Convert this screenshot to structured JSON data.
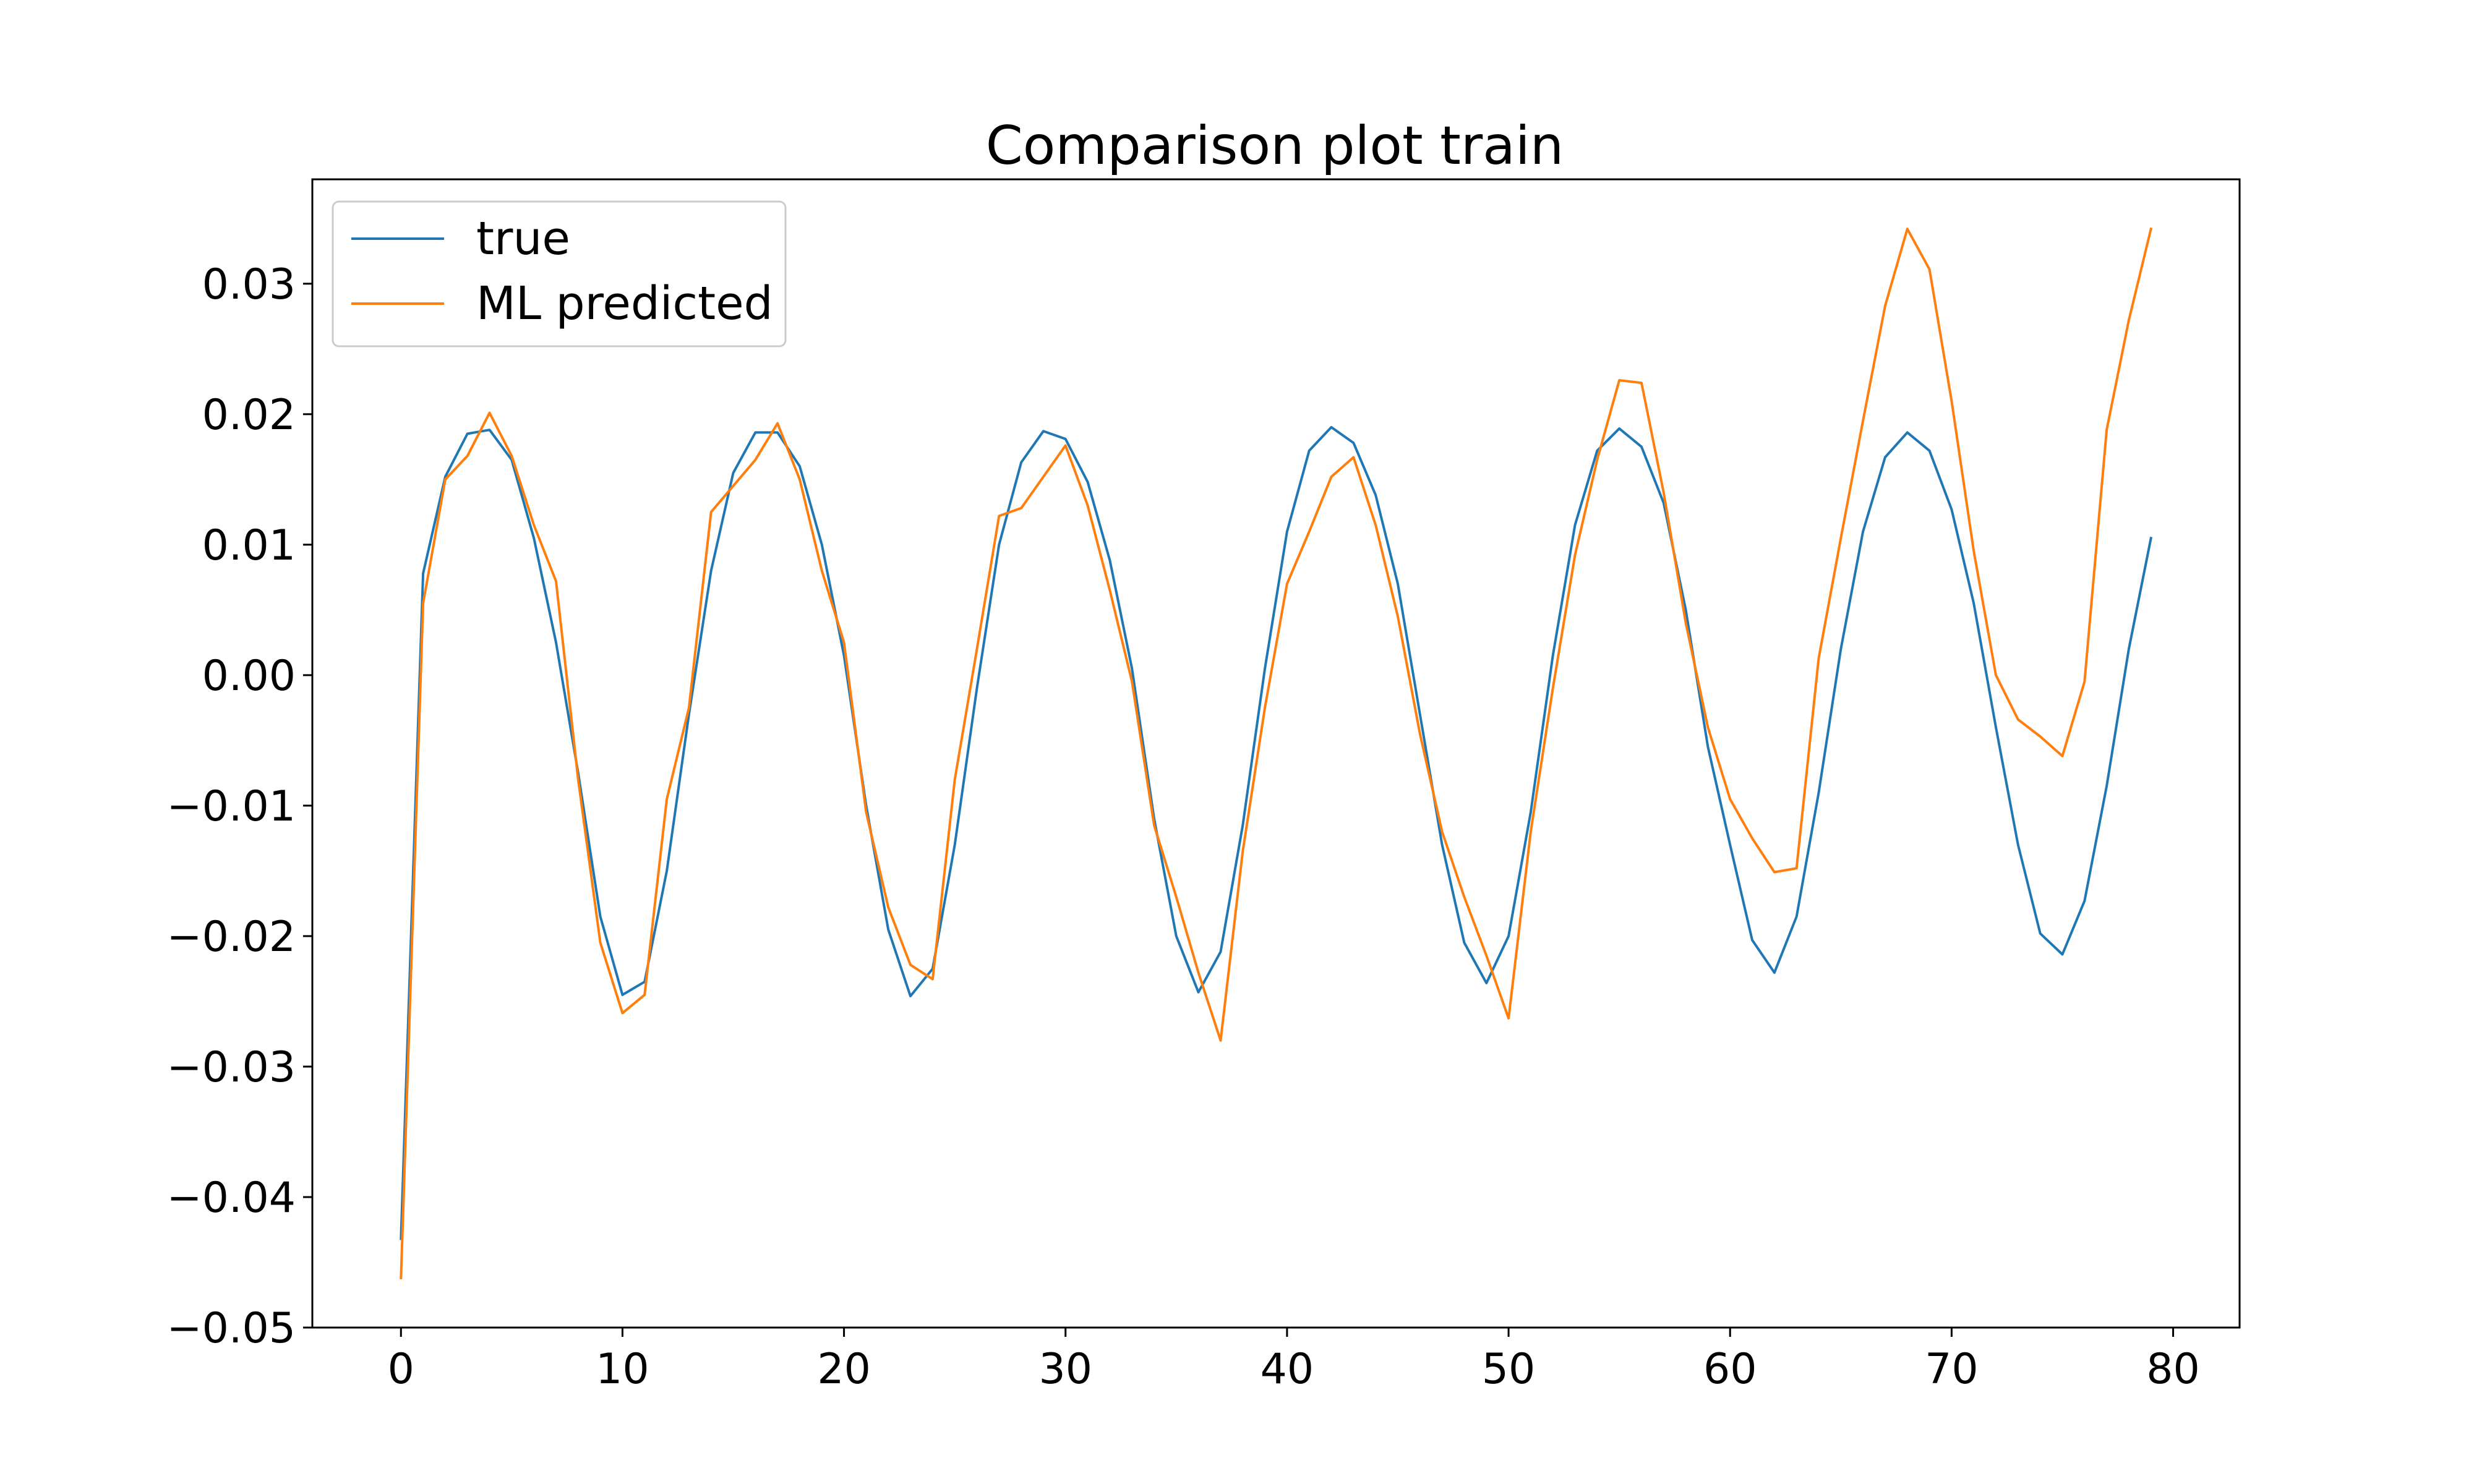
{
  "chart_data": {
    "type": "line",
    "title": "Comparison plot train",
    "xlabel": "",
    "ylabel": "",
    "xlim": [
      -4,
      83
    ],
    "ylim": [
      -0.05,
      0.038
    ],
    "xticks": [
      0,
      10,
      20,
      30,
      40,
      50,
      60,
      70,
      80
    ],
    "xtick_labels": [
      "0",
      "10",
      "20",
      "30",
      "40",
      "50",
      "60",
      "70",
      "80"
    ],
    "yticks": [
      -0.05,
      -0.04,
      -0.03,
      -0.02,
      -0.01,
      0.0,
      0.01,
      0.02,
      0.03
    ],
    "ytick_labels": [
      "−0.05",
      "−0.04",
      "−0.03",
      "−0.02",
      "−0.01",
      "0.00",
      "0.01",
      "0.02",
      "0.03"
    ],
    "grid": false,
    "legend_position": "upper-left",
    "series": [
      {
        "name": "true",
        "color": "#1f77b4",
        "values": [
          -0.0432,
          0.0078,
          0.0152,
          0.0185,
          0.0188,
          0.0165,
          0.0105,
          0.0025,
          -0.0075,
          -0.0185,
          -0.0245,
          -0.0235,
          -0.015,
          -0.003,
          0.008,
          0.0155,
          0.0186,
          0.0186,
          0.016,
          0.01,
          0.0015,
          -0.01,
          -0.0195,
          -0.0246,
          -0.0225,
          -0.013,
          -0.001,
          0.01,
          0.0163,
          0.0187,
          0.0181,
          0.0148,
          0.0088,
          0.0005,
          -0.011,
          -0.02,
          -0.0243,
          -0.0212,
          -0.0115,
          0.0005,
          0.011,
          0.0172,
          0.019,
          0.0178,
          0.0138,
          0.007,
          -0.003,
          -0.013,
          -0.0205,
          -0.0236,
          -0.02,
          -0.0105,
          0.0015,
          0.0115,
          0.0172,
          0.0189,
          0.0175,
          0.0132,
          0.005,
          -0.0055,
          -0.013,
          -0.0203,
          -0.0228,
          -0.0185,
          -0.009,
          0.002,
          0.011,
          0.0167,
          0.0186,
          0.0172,
          0.0127,
          0.0055,
          -0.004,
          -0.013,
          -0.0198,
          -0.0214,
          -0.0173,
          -0.0085,
          0.002,
          0.0105
        ]
      },
      {
        "name": "ML predicted",
        "color": "#ff7f0e",
        "values": [
          -0.0462,
          0.0055,
          0.015,
          0.0168,
          0.0201,
          0.0168,
          0.0115,
          0.0072,
          -0.008,
          -0.0205,
          -0.0259,
          -0.0245,
          -0.0095,
          -0.0025,
          0.0125,
          0.0145,
          0.0165,
          0.0193,
          0.015,
          0.008,
          0.0025,
          -0.0105,
          -0.0178,
          -0.0222,
          -0.0233,
          -0.008,
          0.002,
          0.0122,
          0.0128,
          0.0152,
          0.0176,
          0.013,
          0.0065,
          -0.0005,
          -0.0115,
          -0.017,
          -0.0228,
          -0.028,
          -0.0135,
          -0.0025,
          0.007,
          0.011,
          0.0152,
          0.0167,
          0.0115,
          0.0045,
          -0.0045,
          -0.012,
          -0.017,
          -0.0215,
          -0.0263,
          -0.012,
          -0.001,
          0.0092,
          0.0165,
          0.0226,
          0.0224,
          0.014,
          0.004,
          -0.004,
          -0.0095,
          -0.0125,
          -0.0151,
          -0.0148,
          0.0013,
          0.0105,
          0.0195,
          0.0283,
          0.0342,
          0.0311,
          0.021,
          0.0095,
          0.0,
          -0.0034,
          -0.0047,
          -0.0062,
          -0.0005,
          0.0188,
          0.0272,
          0.0342
        ]
      }
    ]
  }
}
